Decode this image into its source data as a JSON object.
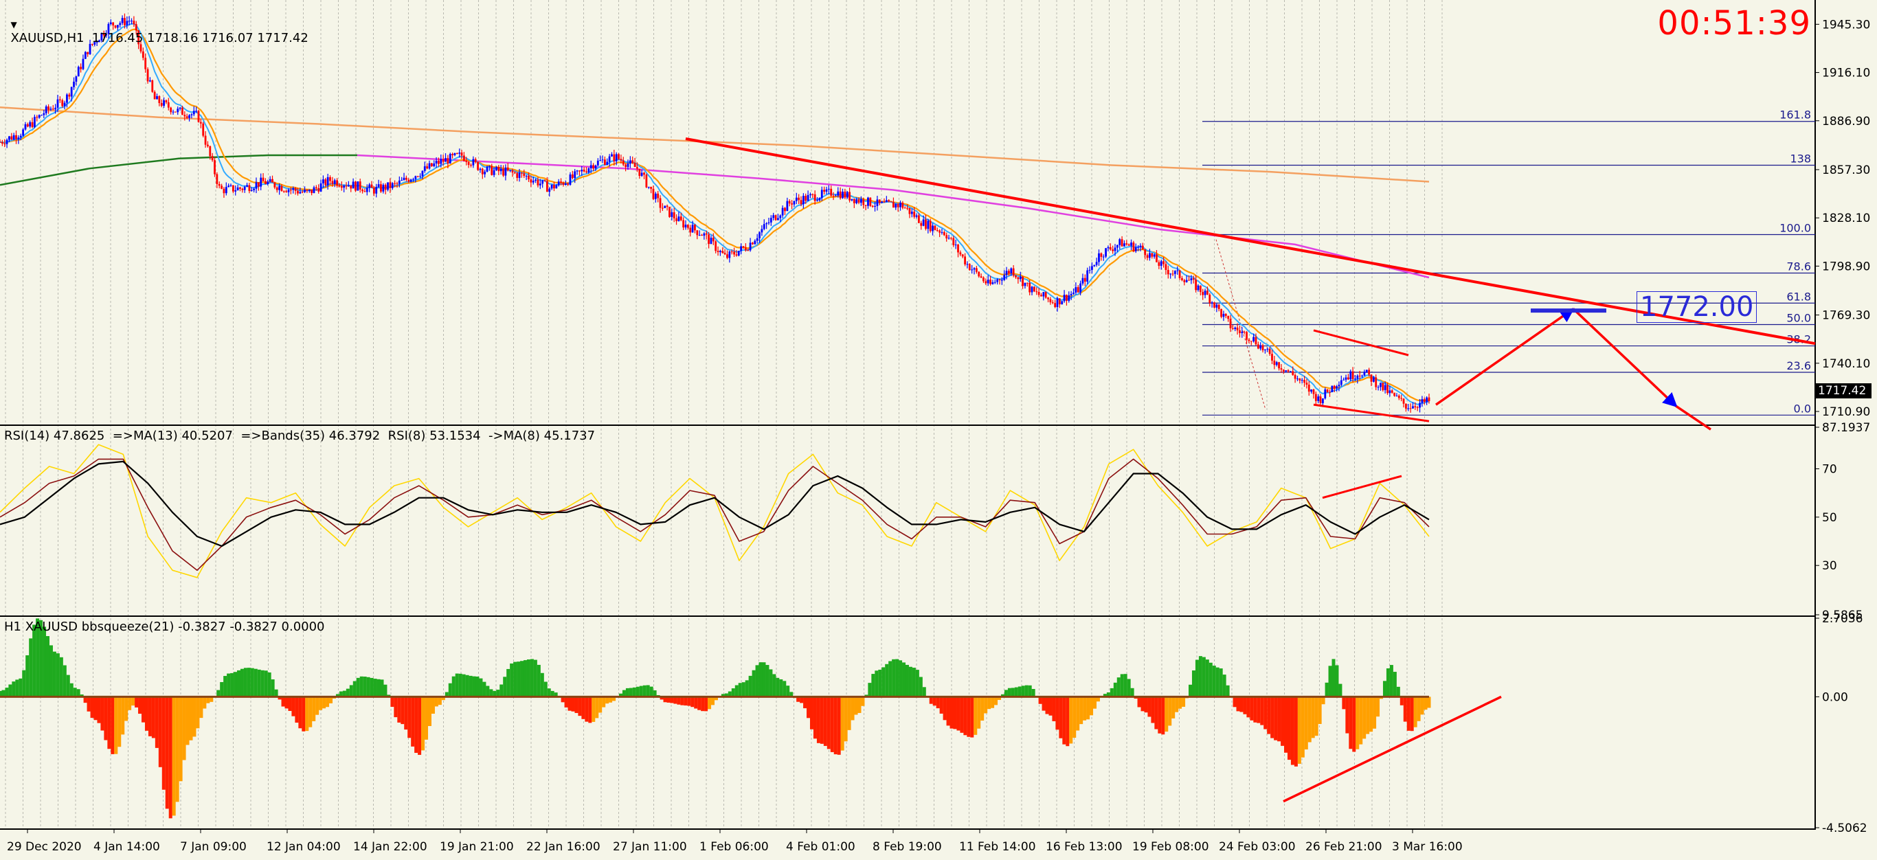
{
  "header": {
    "main": "XAUUSD,H1  1716.45 1718.16 1716.07 1717.42",
    "rsi": "RSI(14) 47.8625  =>MA(13) 40.5207  =>Bands(35) 46.3792  RSI(8) 53.1534  ->MA(8) 45.1737",
    "squeeze": "H1 XAUUSD bbsqueeze(21) -0.3827 -0.3827 0.0000"
  },
  "clock": "00:51:39",
  "target_label": "1772.00",
  "current_price": "1717.42",
  "colors": {
    "background": "#f5f5e8",
    "candle_up": "#0000ff",
    "candle_down": "#ff0000",
    "trendline": "#ff0000",
    "fib": "#1a1a8c",
    "ma_long": "#f4a060",
    "ma_green": "#1e7a1e",
    "ma_magenta": "#e040e0",
    "rsi_fast": "#ffd700",
    "rsi_mid": "#8b1010",
    "rsi_slow": "#000000",
    "hist_green": "#1faa1f",
    "hist_orange": "#ffa000",
    "hist_red": "#ff2000"
  },
  "chart_data": [
    {
      "type": "candlestick",
      "symbol": "XAUUSD",
      "timeframe": "H1",
      "x_tick_labels": [
        "29 Dec 2020",
        "4 Jan 14:00",
        "7 Jan 09:00",
        "12 Jan 04:00",
        "14 Jan 22:00",
        "19 Jan 21:00",
        "22 Jan 16:00",
        "27 Jan 11:00",
        "1 Feb 06:00",
        "4 Feb 01:00",
        "8 Feb 19:00",
        "11 Feb 14:00",
        "16 Feb 13:00",
        "19 Feb 08:00",
        "24 Feb 03:00",
        "26 Feb 21:00",
        "3 Mar 16:00"
      ],
      "y_tick_labels": [
        "1945.30",
        "1916.10",
        "1886.90",
        "1857.30",
        "1828.10",
        "1798.90",
        "1769.30",
        "1740.10",
        "1710.90"
      ],
      "ylim": [
        1703,
        1960
      ],
      "close_path": [
        1874,
        1880,
        1892,
        1900,
        1930,
        1945,
        1948,
        1900,
        1893,
        1890,
        1845,
        1846,
        1850,
        1846,
        1843,
        1851,
        1848,
        1845,
        1848,
        1855,
        1862,
        1866,
        1857,
        1856,
        1853,
        1846,
        1852,
        1861,
        1865,
        1858,
        1836,
        1825,
        1818,
        1804,
        1811,
        1826,
        1838,
        1841,
        1844,
        1839,
        1836,
        1836,
        1825,
        1819,
        1800,
        1787,
        1797,
        1783,
        1777,
        1784,
        1806,
        1813,
        1809,
        1797,
        1791,
        1780,
        1762,
        1755,
        1741,
        1731,
        1718,
        1731,
        1735,
        1724,
        1714,
        1717
      ],
      "moving_averages": [
        {
          "color": "orange",
          "values": [
            1895,
            1889,
            1885,
            1880,
            1876,
            1872,
            1866,
            1860,
            1856,
            1850
          ]
        },
        {
          "color": "green",
          "values": [
            1848,
            1858,
            1864,
            1866,
            1866
          ]
        },
        {
          "color": "magenta",
          "values": [
            1866,
            1862,
            1858,
            1852,
            1845,
            1834,
            1821,
            1812,
            1792
          ]
        }
      ],
      "fibonacci_levels": [
        {
          "label": "161.8",
          "price": 1886.5
        },
        {
          "label": "138",
          "price": 1860
        },
        {
          "label": "100.0",
          "price": 1818
        },
        {
          "label": "78.6",
          "price": 1794.7
        },
        {
          "label": "61.8",
          "price": 1776.5
        },
        {
          "label": "50.0",
          "price": 1763.5
        },
        {
          "label": "38.2",
          "price": 1750.6
        },
        {
          "label": "23.6",
          "price": 1734.6
        },
        {
          "label": "0.0",
          "price": 1708.7
        }
      ],
      "current_price": 1717.42,
      "target_price": 1772.0
    },
    {
      "type": "line",
      "title": "RSI(14) 47.8625  =>MA(13) 40.5207  =>Bands(35) 46.3792  RSI(8) 53.1534  ->MA(8) 45.1737",
      "y_tick_labels": [
        "87.1937",
        "70",
        "50",
        "30",
        "9.5865"
      ],
      "ylim": [
        9.5865,
        87.1937
      ],
      "series": [
        {
          "name": "RSI(8)",
          "color": "yellow",
          "values": [
            52,
            62,
            71,
            68,
            80,
            76,
            42,
            28,
            25,
            44,
            58,
            56,
            60,
            47,
            38,
            54,
            63,
            66,
            54,
            46,
            52,
            58,
            49,
            54,
            60,
            46,
            40,
            56,
            66,
            58,
            32,
            46,
            68,
            76,
            60,
            55,
            42,
            38,
            56,
            50,
            44,
            61,
            55,
            32,
            46,
            72,
            78,
            63,
            52,
            38,
            44,
            48,
            62,
            58,
            37,
            41,
            64,
            55,
            42
          ]
        },
        {
          "name": "MA(8)",
          "color": "darkred",
          "values": [
            50,
            56,
            64,
            67,
            74,
            74,
            54,
            36,
            28,
            38,
            50,
            54,
            57,
            51,
            43,
            49,
            58,
            63,
            57,
            50,
            51,
            55,
            51,
            53,
            57,
            50,
            44,
            51,
            61,
            59,
            40,
            44,
            61,
            71,
            64,
            57,
            47,
            41,
            50,
            50,
            46,
            57,
            56,
            39,
            44,
            66,
            74,
            66,
            55,
            43,
            43,
            46,
            57,
            58,
            42,
            41,
            58,
            56,
            46
          ]
        },
        {
          "name": "MA(13)",
          "color": "black",
          "values": [
            47,
            50,
            58,
            66,
            72,
            73,
            64,
            52,
            42,
            38,
            44,
            50,
            53,
            52,
            47,
            47,
            52,
            58,
            58,
            53,
            51,
            53,
            52,
            52,
            55,
            52,
            47,
            48,
            55,
            58,
            50,
            45,
            51,
            63,
            67,
            62,
            54,
            47,
            47,
            49,
            48,
            52,
            54,
            47,
            44,
            56,
            68,
            68,
            60,
            50,
            45,
            45,
            51,
            55,
            48,
            43,
            50,
            55,
            49
          ]
        }
      ]
    },
    {
      "type": "histogram",
      "title": "H1 XAUUSD bbsqueeze(21) -0.3827 -0.3827 0.0000",
      "y_tick_labels": [
        "2.7036",
        "0.00",
        "-4.5062"
      ],
      "ylim": [
        -4.5062,
        2.7036
      ],
      "values": [
        0.2,
        0.6,
        2.7,
        1.5,
        0.3,
        -0.8,
        -2.0,
        -0.3,
        -1.4,
        -4.2,
        -1.5,
        -0.2,
        0.8,
        1.0,
        0.9,
        -0.4,
        -1.2,
        -0.4,
        0.2,
        0.7,
        0.6,
        -0.9,
        -2.0,
        -0.3,
        0.8,
        0.7,
        0.2,
        1.2,
        1.3,
        0.2,
        -0.5,
        -0.9,
        -0.2,
        0.3,
        0.4,
        -0.2,
        -0.3,
        -0.5,
        0.1,
        0.5,
        1.2,
        0.6,
        -0.2,
        -1.6,
        -2.0,
        -0.6,
        0.9,
        1.3,
        1.0,
        -0.3,
        -1.1,
        -1.4,
        -0.4,
        0.3,
        0.4,
        -0.6,
        -1.7,
        -0.8,
        0.1,
        0.8,
        -0.5,
        -1.3,
        -0.4,
        1.4,
        1.0,
        -0.5,
        -0.9,
        -1.5,
        -2.4,
        -1.4,
        1.3,
        -1.9,
        -1.2,
        1.1,
        -1.2,
        -0.38
      ]
    }
  ]
}
